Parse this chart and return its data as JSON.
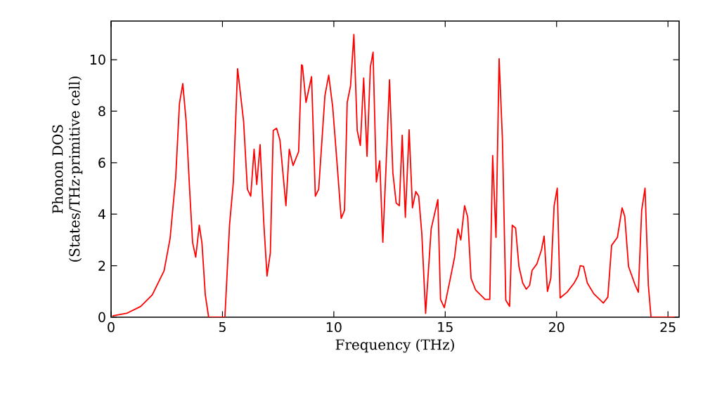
{
  "chart_data": {
    "type": "line",
    "xlabel": "Frequency (THz)",
    "ylabel": "Phonon DOS\n(States/THz·primitive cell)",
    "xlim": [
      0,
      25.5
    ],
    "ylim": [
      0,
      11.5
    ],
    "xticks": [
      0,
      5,
      10,
      15,
      20,
      25
    ],
    "yticks": [
      0,
      2,
      4,
      6,
      8,
      10
    ],
    "grid": false,
    "marker": "none",
    "line_style": "solid",
    "series": [
      {
        "color": "#ff0000",
        "x": [
          0.06,
          0.7,
          1.33,
          1.85,
          2.38,
          2.65,
          2.9,
          3.07,
          3.22,
          3.37,
          3.53,
          3.66,
          3.8,
          3.96,
          4.08,
          4.23,
          4.38,
          5.11,
          5.32,
          5.49,
          5.68,
          5.95,
          6.12,
          6.27,
          6.42,
          6.54,
          6.69,
          6.86,
          7.0,
          7.15,
          7.28,
          7.43,
          7.58,
          7.85,
          8.0,
          8.17,
          8.42,
          8.55,
          8.59,
          8.75,
          9.0,
          9.17,
          9.32,
          9.6,
          9.77,
          9.95,
          10.16,
          10.33,
          10.48,
          10.6,
          10.75,
          10.9,
          11.05,
          11.19,
          11.34,
          11.49,
          11.64,
          11.76,
          11.91,
          12.06,
          12.2,
          12.35,
          12.5,
          12.65,
          12.8,
          12.94,
          13.07,
          13.21,
          13.38,
          13.53,
          13.68,
          13.81,
          13.95,
          14.12,
          14.37,
          14.67,
          14.79,
          14.96,
          15.21,
          15.42,
          15.57,
          15.7,
          15.87,
          16.01,
          16.16,
          16.37,
          16.79,
          17.0,
          17.13,
          17.28,
          17.42,
          17.57,
          17.72,
          17.89,
          18.01,
          18.16,
          18.31,
          18.48,
          18.64,
          18.79,
          18.9,
          19.11,
          19.32,
          19.44,
          19.59,
          19.74,
          19.89,
          20.03,
          20.16,
          20.47,
          20.79,
          20.96,
          21.06,
          21.21,
          21.38,
          21.67,
          22.1,
          22.3,
          22.47,
          22.73,
          22.94,
          23.06,
          23.23,
          23.53,
          23.67,
          23.82,
          23.97,
          24.12,
          24.24,
          25.3
        ],
        "values": [
          0.05,
          0.15,
          0.42,
          0.87,
          1.8,
          3.06,
          5.4,
          8.3,
          9.07,
          7.6,
          4.9,
          2.9,
          2.33,
          3.57,
          2.88,
          0.87,
          0,
          0,
          3.6,
          5.25,
          9.65,
          7.6,
          4.97,
          4.7,
          6.52,
          5.15,
          6.7,
          3.6,
          1.6,
          2.5,
          7.25,
          7.34,
          6.88,
          4.33,
          6.52,
          5.89,
          6.43,
          9.8,
          9.77,
          8.34,
          9.34,
          4.7,
          4.97,
          8.6,
          9.4,
          8.16,
          5.8,
          3.84,
          4.15,
          8.34,
          8.98,
          10.98,
          7.25,
          6.67,
          9.29,
          6.25,
          9.71,
          10.29,
          5.25,
          6.07,
          2.91,
          5.97,
          9.22,
          5.61,
          4.43,
          4.33,
          7.07,
          3.88,
          7.28,
          4.25,
          4.88,
          4.7,
          3.24,
          0.15,
          3.43,
          4.57,
          0.69,
          0.37,
          1.42,
          2.33,
          3.43,
          3.0,
          4.33,
          3.88,
          1.51,
          1.05,
          0.69,
          0.69,
          6.28,
          3.1,
          10.04,
          6.88,
          0.66,
          0.42,
          3.57,
          3.46,
          1.97,
          1.33,
          1.09,
          1.24,
          1.82,
          2.06,
          2.61,
          3.15,
          1.0,
          1.51,
          4.33,
          5.01,
          0.75,
          0.97,
          1.33,
          1.6,
          2.0,
          1.97,
          1.33,
          0.91,
          0.55,
          0.78,
          2.79,
          3.1,
          4.25,
          3.92,
          1.97,
          1.24,
          0.97,
          4.15,
          5.01,
          1.24,
          0,
          0
        ]
      }
    ]
  }
}
